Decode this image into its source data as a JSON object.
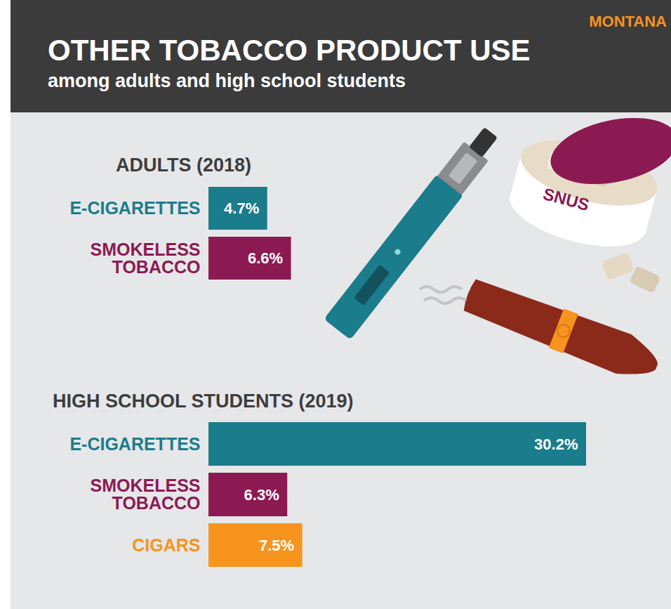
{
  "header": {
    "title": "OTHER TOBACCO PRODUCT USE",
    "subtitle": "among adults and high school students",
    "region": "MONTANA"
  },
  "illustration": {
    "text": "SNUS"
  },
  "chart_data": [
    {
      "type": "bar",
      "title": "ADULTS (2018)",
      "orientation": "horizontal",
      "categories": [
        "E-CIGARETTES",
        "SMOKELESS TOBACCO"
      ],
      "values": [
        4.7,
        6.6
      ],
      "value_labels": [
        "4.7%",
        "6.6%"
      ],
      "colors": [
        "#1b7c8c",
        "#8c1a52"
      ],
      "data_labels": true,
      "tick_labels": "y"
    },
    {
      "type": "bar",
      "title": "HIGH SCHOOL STUDENTS (2019)",
      "orientation": "horizontal",
      "categories": [
        "E-CIGARETTES",
        "SMOKELESS TOBACCO",
        "CIGARS"
      ],
      "values": [
        30.2,
        6.3,
        7.5
      ],
      "value_labels": [
        "30.2%",
        "6.3%",
        "7.5%"
      ],
      "colors": [
        "#1b7c8c",
        "#8c1a52",
        "#f7941d"
      ],
      "data_labels": true,
      "tick_labels": "y"
    }
  ]
}
